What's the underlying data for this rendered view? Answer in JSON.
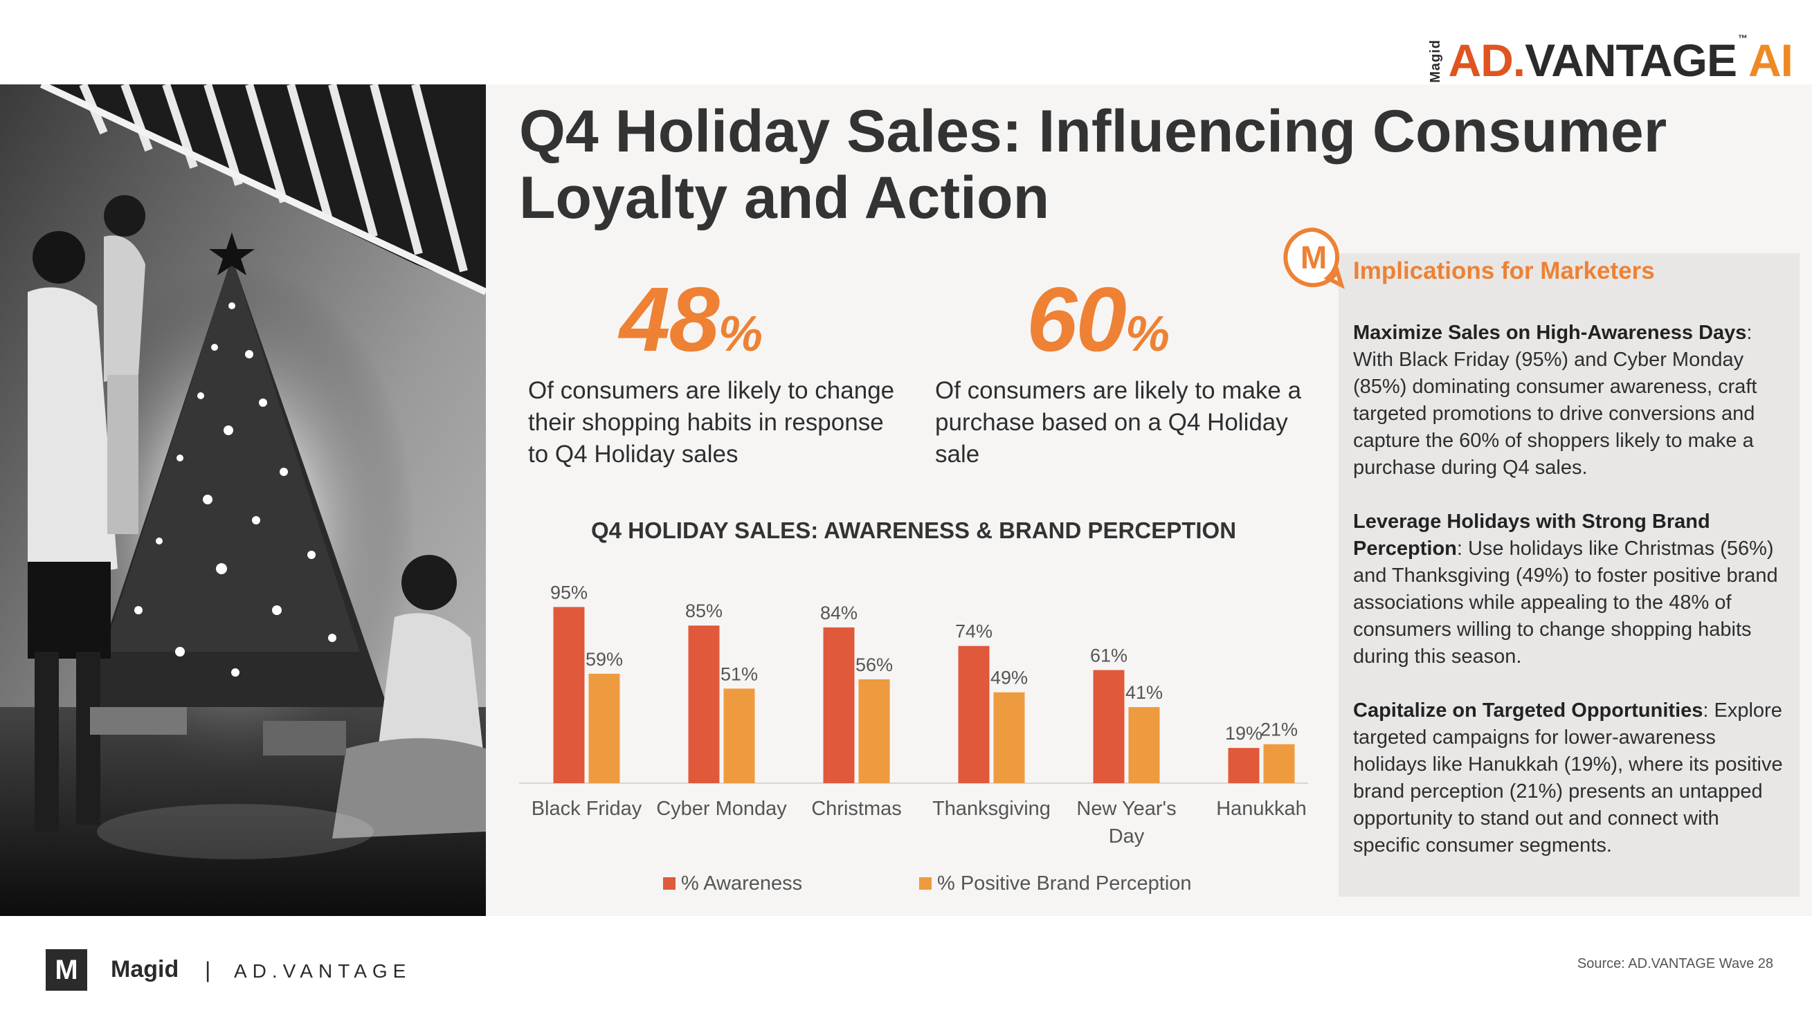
{
  "brand": {
    "vertical": "Magid",
    "ad": "AD",
    "dot": ".",
    "vantage": "VANTAGE",
    "tm": "™",
    "ai": "AI"
  },
  "title": "Q4 Holiday Sales: Influencing Consumer Loyalty and Action",
  "stats": [
    {
      "value": "48",
      "unit": "%",
      "text": "Of consumers are likely to change their shopping habits in response to Q4 Holiday sales"
    },
    {
      "value": "60",
      "unit": "%",
      "text": "Of consumers are likely to make a purchase based on a Q4 Holiday sale"
    }
  ],
  "chart_data": {
    "type": "bar",
    "title": "Q4 HOLIDAY SALES: AWARENESS & BRAND PERCEPTION",
    "categories": [
      [
        "Black Friday"
      ],
      [
        "Cyber Monday"
      ],
      [
        "Christmas"
      ],
      [
        "Thanksgiving"
      ],
      [
        "New Year's",
        "Day"
      ],
      [
        "Hanukkah"
      ]
    ],
    "series": [
      {
        "name": "% Awareness",
        "color": "#e0593a",
        "values": [
          95,
          85,
          84,
          74,
          61,
          19
        ],
        "labels": [
          "95%",
          "85%",
          "84%",
          "74%",
          "61%",
          "19%"
        ]
      },
      {
        "name": "% Positive Brand Perception",
        "color": "#ee9a3e",
        "values": [
          59,
          51,
          56,
          49,
          41,
          21
        ],
        "labels": [
          "59%",
          "51%",
          "56%",
          "49%",
          "41%",
          "21%"
        ]
      }
    ],
    "ylim": [
      0,
      100
    ],
    "grid": false,
    "legend": "bottom"
  },
  "panel": {
    "title": "Implications for Marketers",
    "items": [
      {
        "heading": "Maximize Sales on High-Awareness Days",
        "body": ": With Black Friday (95%) and Cyber Monday (85%) dominating consumer awareness, craft targeted promotions to drive conversions and capture the 60% of shoppers likely to make a purchase during Q4 sales."
      },
      {
        "heading": "Leverage Holidays with Strong Brand Perception",
        "body": ": Use holidays like Christmas (56%) and Thanksgiving (49%) to foster positive brand associations while appealing to the 48% of consumers willing to change shopping habits during this season."
      },
      {
        "heading": "Capitalize on Targeted Opportunities",
        "body": ": Explore targeted campaigns for lower-awareness holidays like Hanukkah (19%), where its positive brand perception (21%) presents an untapped opportunity to stand out and connect with specific consumer segments."
      }
    ]
  },
  "footer": {
    "logo_letter": "M",
    "magid": "Magid",
    "separator": "|",
    "product": "AD.VANTAGE",
    "source": "Source: AD.VANTAGE Wave 28"
  }
}
